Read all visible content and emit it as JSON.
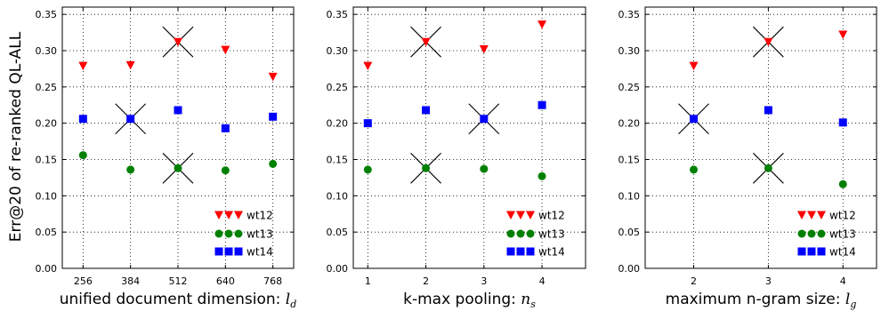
{
  "figure": {
    "ylabel": "Err@20 of re-ranked QL-ALL"
  },
  "colors": {
    "wt12": "#ff0000",
    "wt13": "#008000",
    "wt14": "#0000ff"
  },
  "chart_data": [
    {
      "type": "scatter",
      "xlabel_text": "unified document dimension: ",
      "xlabel_var": "l",
      "xlabel_sub": "d",
      "ylabel": "Err@20 of re-ranked QL-ALL",
      "xlim": [
        200,
        824
      ],
      "ylim": [
        0,
        0.36
      ],
      "xticks": [
        256,
        384,
        512,
        640,
        768
      ],
      "xtick_labels": [
        "256",
        "384",
        "512",
        "640",
        "768"
      ],
      "yticks": [
        0,
        0.05,
        0.1,
        0.15,
        0.2,
        0.25,
        0.3,
        0.35
      ],
      "ytick_labels": [
        "0.00",
        "0.05",
        "0.10",
        "0.15",
        "0.20",
        "0.25",
        "0.30",
        "0.35"
      ],
      "grid": true,
      "legend_position": "lower-right",
      "series": [
        {
          "name": "wt12",
          "marker": "triangle-down",
          "x": [
            256,
            384,
            512,
            640,
            768
          ],
          "y": [
            0.279,
            0.28,
            0.312,
            0.301,
            0.264
          ]
        },
        {
          "name": "wt13",
          "marker": "circle",
          "x": [
            256,
            384,
            512,
            640,
            768
          ],
          "y": [
            0.156,
            0.136,
            0.138,
            0.135,
            0.144
          ]
        },
        {
          "name": "wt14",
          "marker": "square",
          "x": [
            256,
            384,
            512,
            640,
            768
          ],
          "y": [
            0.206,
            0.206,
            0.218,
            0.193,
            0.209
          ]
        }
      ],
      "highlighted": [
        {
          "x": 512,
          "y": 0.312
        },
        {
          "x": 384,
          "y": 0.206
        },
        {
          "x": 512,
          "y": 0.138
        }
      ]
    },
    {
      "type": "scatter",
      "xlabel_text": "k-max pooling: ",
      "xlabel_var": "n",
      "xlabel_sub": "s",
      "xlim": [
        0.75,
        4.75
      ],
      "ylim": [
        0,
        0.36
      ],
      "xticks": [
        1,
        2,
        3,
        4
      ],
      "xtick_labels": [
        "1",
        "2",
        "3",
        "4"
      ],
      "yticks": [
        0,
        0.05,
        0.1,
        0.15,
        0.2,
        0.25,
        0.3,
        0.35
      ],
      "ytick_labels": [
        "0.00",
        "0.05",
        "0.10",
        "0.15",
        "0.20",
        "0.25",
        "0.30",
        "0.35"
      ],
      "grid": true,
      "legend_position": "lower-right",
      "series": [
        {
          "name": "wt12",
          "marker": "triangle-down",
          "x": [
            1,
            2,
            3,
            4
          ],
          "y": [
            0.279,
            0.312,
            0.302,
            0.336
          ]
        },
        {
          "name": "wt13",
          "marker": "circle",
          "x": [
            1,
            2,
            3,
            4
          ],
          "y": [
            0.136,
            0.138,
            0.137,
            0.127
          ]
        },
        {
          "name": "wt14",
          "marker": "square",
          "x": [
            1,
            2,
            3,
            4
          ],
          "y": [
            0.2,
            0.218,
            0.206,
            0.225
          ]
        }
      ],
      "highlighted": [
        {
          "x": 2,
          "y": 0.312
        },
        {
          "x": 3,
          "y": 0.206
        },
        {
          "x": 2,
          "y": 0.138
        }
      ]
    },
    {
      "type": "scatter",
      "xlabel_text": "maximum n-gram size: ",
      "xlabel_var": "l",
      "xlabel_sub": "g",
      "xlim": [
        1.35,
        4.45
      ],
      "ylim": [
        0,
        0.36
      ],
      "xticks": [
        2,
        3,
        4
      ],
      "xtick_labels": [
        "2",
        "3",
        "4"
      ],
      "yticks": [
        0,
        0.05,
        0.1,
        0.15,
        0.2,
        0.25,
        0.3,
        0.35
      ],
      "ytick_labels": [
        "0.00",
        "0.05",
        "0.10",
        "0.15",
        "0.20",
        "0.25",
        "0.30",
        "0.35"
      ],
      "grid": true,
      "legend_position": "lower-right",
      "series": [
        {
          "name": "wt12",
          "marker": "triangle-down",
          "x": [
            2,
            3,
            4
          ],
          "y": [
            0.279,
            0.312,
            0.322
          ]
        },
        {
          "name": "wt13",
          "marker": "circle",
          "x": [
            2,
            3,
            4
          ],
          "y": [
            0.136,
            0.138,
            0.116
          ]
        },
        {
          "name": "wt14",
          "marker": "square",
          "x": [
            2,
            3,
            4
          ],
          "y": [
            0.206,
            0.218,
            0.201
          ]
        }
      ],
      "highlighted": [
        {
          "x": 3,
          "y": 0.312
        },
        {
          "x": 2,
          "y": 0.206
        },
        {
          "x": 3,
          "y": 0.138
        }
      ]
    }
  ]
}
